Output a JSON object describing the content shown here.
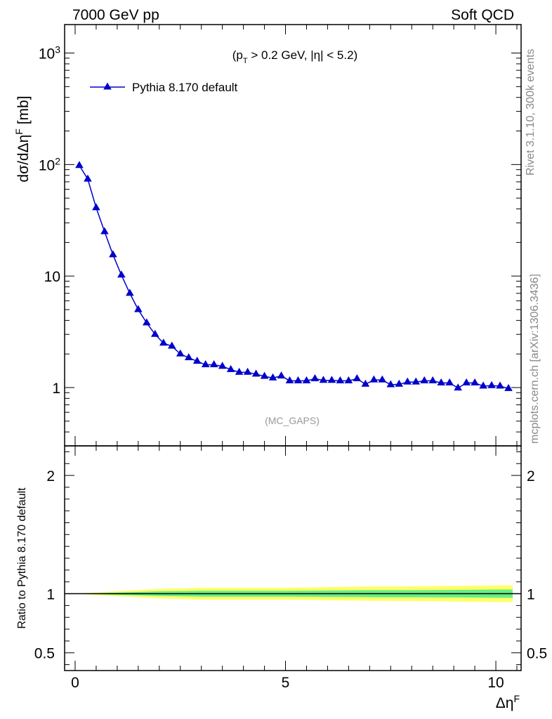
{
  "header": {
    "left": "7000 GeV pp",
    "right": "Soft QCD"
  },
  "side_labels": {
    "rivet": "Rivet 3.1.10,  300k events",
    "mcplots": "mcplots.cern.ch [arXiv:1306.3436]"
  },
  "colors": {
    "series": "#0000cc",
    "band_inner": "#66ee88",
    "band_outer": "#ffff66",
    "axis": "#000000",
    "watermark": "#999999"
  },
  "chart_data": [
    {
      "type": "line",
      "name": "main",
      "cut_label": "(p_T > 0.2 GeV, |η| < 5.2)",
      "analysis_label": "(MC_GAPS)",
      "ylabel": "dσ/dΔη^F [mb]",
      "yscale": "log",
      "ylim": [
        0.3,
        1800
      ],
      "xlim": [
        -0.25,
        10.6
      ],
      "ytick_labels": [
        "1",
        "10",
        "10^2",
        "10^3"
      ],
      "ytick_values": [
        1,
        10,
        100,
        1000
      ],
      "legend_position": "top-left",
      "marker": "triangle",
      "series": [
        {
          "name": "Pythia 8.170 default",
          "x": [
            0.1,
            0.3,
            0.5,
            0.7,
            0.9,
            1.1,
            1.3,
            1.5,
            1.7,
            1.9,
            2.1,
            2.3,
            2.5,
            2.7,
            2.9,
            3.1,
            3.3,
            3.5,
            3.7,
            3.9,
            4.1,
            4.3,
            4.5,
            4.7,
            4.9,
            5.1,
            5.3,
            5.5,
            5.7,
            5.9,
            6.1,
            6.3,
            6.5,
            6.7,
            6.9,
            7.1,
            7.3,
            7.5,
            7.7,
            7.9,
            8.1,
            8.3,
            8.5,
            8.7,
            8.9,
            9.1,
            9.3,
            9.5,
            9.7,
            9.9,
            10.1,
            10.3
          ],
          "y": [
            98,
            74,
            41,
            25,
            15.5,
            10.2,
            7.0,
            5.0,
            3.8,
            3.0,
            2.5,
            2.35,
            2.0,
            1.85,
            1.72,
            1.6,
            1.6,
            1.55,
            1.45,
            1.37,
            1.37,
            1.32,
            1.26,
            1.22,
            1.27,
            1.15,
            1.15,
            1.15,
            1.2,
            1.16,
            1.16,
            1.15,
            1.15,
            1.2,
            1.07,
            1.17,
            1.17,
            1.06,
            1.07,
            1.12,
            1.12,
            1.15,
            1.15,
            1.1,
            1.1,
            0.99,
            1.1,
            1.1,
            1.03,
            1.04,
            1.03,
            0.98
          ]
        }
      ]
    },
    {
      "type": "line",
      "name": "ratio",
      "ylabel": "Ratio to Pythia 8.170 default",
      "xlabel": "Δη^F",
      "ylim": [
        0.35,
        2.25
      ],
      "xlim": [
        -0.25,
        10.6
      ],
      "ytick_labels": [
        "0.5",
        "1",
        "2"
      ],
      "ytick_values": [
        0.5,
        1,
        2
      ],
      "xtick_labels": [
        "0",
        "5",
        "10"
      ],
      "xtick_values": [
        0,
        5,
        10
      ],
      "reference_line": 1,
      "bands": {
        "x": [
          0.0,
          0.5,
          1.0,
          1.5,
          2.0,
          2.5,
          3.0,
          4.0,
          5.0,
          6.0,
          7.0,
          8.0,
          9.0,
          10.0,
          10.4
        ],
        "inner_halfwidth": [
          0.0,
          0.005,
          0.01,
          0.015,
          0.02,
          0.022,
          0.025,
          0.025,
          0.025,
          0.027,
          0.03,
          0.03,
          0.032,
          0.035,
          0.035
        ],
        "outer_halfwidth": [
          0.0,
          0.01,
          0.02,
          0.03,
          0.04,
          0.045,
          0.05,
          0.05,
          0.05,
          0.055,
          0.06,
          0.062,
          0.065,
          0.07,
          0.07
        ]
      }
    }
  ]
}
